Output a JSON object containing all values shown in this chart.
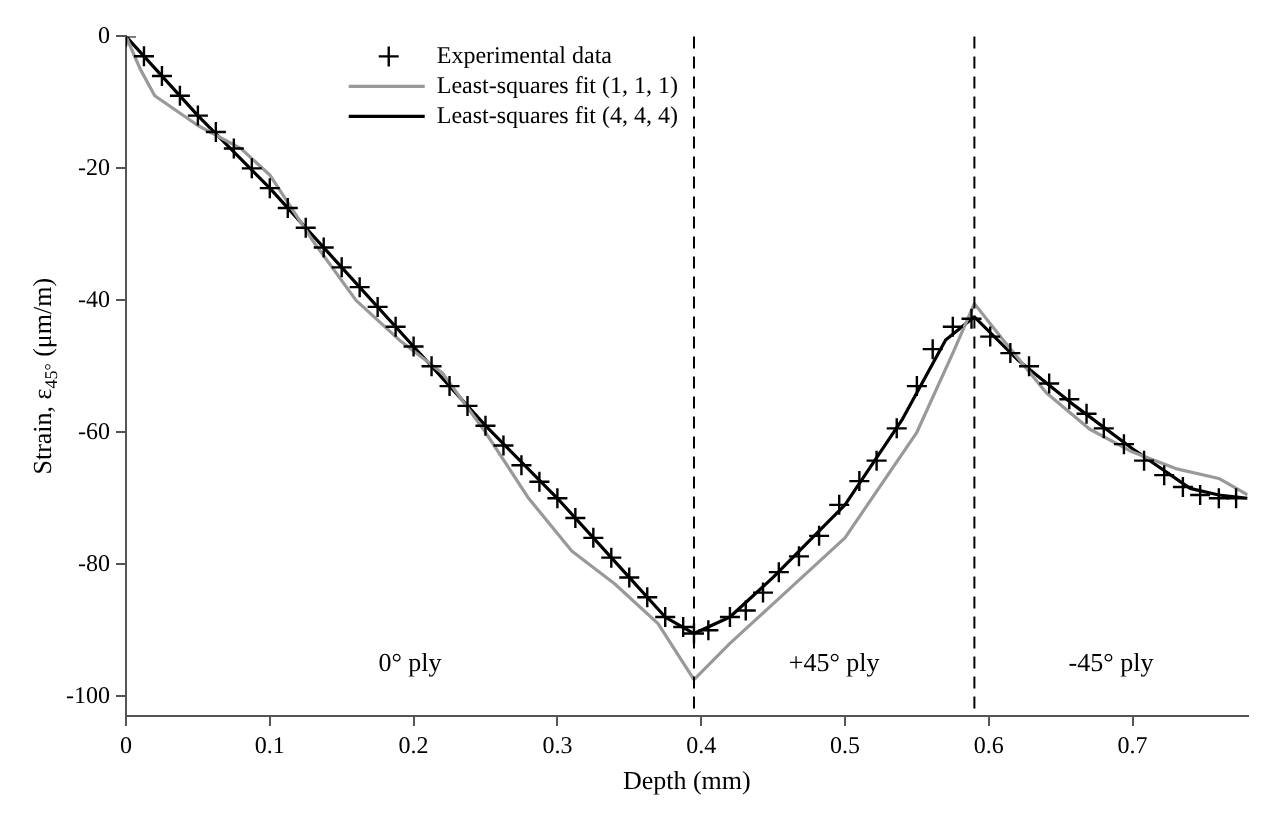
{
  "chart_data": {
    "type": "line",
    "xlabel": "Depth (mm)",
    "ylabel": "Strain, ε$_{45°}$ (μm/m)",
    "xlim": [
      0,
      0.78
    ],
    "xticks": [
      0,
      0.1,
      0.2,
      0.3,
      0.4,
      0.5,
      0.6,
      0.7
    ],
    "ylim": [
      -103,
      0
    ],
    "yticks": [
      0,
      -20,
      -40,
      -60,
      -80,
      -100
    ],
    "grid": false,
    "legend": "top",
    "series": [
      {
        "name": "Experimental data",
        "type": "scatter",
        "marker": "cross",
        "color": "#000000",
        "x": [
          0,
          0.0125,
          0.025,
          0.0375,
          0.05,
          0.0625,
          0.075,
          0.0875,
          0.1,
          0.1125,
          0.125,
          0.1375,
          0.15,
          0.1625,
          0.175,
          0.1875,
          0.2,
          0.2125,
          0.225,
          0.2375,
          0.25,
          0.2625,
          0.275,
          0.2875,
          0.3,
          0.3125,
          0.325,
          0.3375,
          0.35,
          0.3625,
          0.375,
          0.3875,
          0.395,
          0.405,
          0.42,
          0.431,
          0.443,
          0.454,
          0.468,
          0.482,
          0.496,
          0.51,
          0.522,
          0.536,
          0.55,
          0.561,
          0.575,
          0.588,
          0.601,
          0.615,
          0.628,
          0.642,
          0.656,
          0.668,
          0.68,
          0.694,
          0.708,
          0.722,
          0.735,
          0.747,
          0.76,
          0.772
        ],
        "values": [
          0,
          -3,
          -6,
          -9,
          -12,
          -14.5,
          -17,
          -20,
          -23,
          -26,
          -29,
          -32,
          -35,
          -38,
          -41,
          -44,
          -47,
          -50,
          -53,
          -56,
          -59,
          -62,
          -65,
          -67.5,
          -70,
          -73,
          -76,
          -79,
          -82,
          -85,
          -88,
          -89.5,
          -90.5,
          -90,
          -88,
          -87,
          -84.3,
          -81.2,
          -78.8,
          -75.7,
          -71,
          -67.4,
          -64.3,
          -59.4,
          -53,
          -47.4,
          -44,
          -42.8,
          -45.5,
          -48,
          -50,
          -52.6,
          -55,
          -57.2,
          -59.4,
          -61.8,
          -64.3,
          -66.5,
          -68.3,
          -69.5,
          -70,
          -70
        ]
      },
      {
        "name": "Least-squares fit (1, 1, 1)",
        "color": "#999999",
        "x": [
          0,
          0.01,
          0.02,
          0.05,
          0.08,
          0.1,
          0.13,
          0.16,
          0.19,
          0.22,
          0.25,
          0.28,
          0.31,
          0.34,
          0.37,
          0.395,
          0.42,
          0.45,
          0.5,
          0.55,
          0.575,
          0.59,
          0.61,
          0.64,
          0.67,
          0.7,
          0.73,
          0.76,
          0.78
        ],
        "values": [
          0,
          -5,
          -9,
          -13.5,
          -17,
          -21,
          -31,
          -40,
          -46,
          -51,
          -60,
          -70,
          -78,
          -83,
          -89,
          -97.5,
          -92,
          -86,
          -76,
          -60,
          -48,
          -40.5,
          -46,
          -54,
          -59.5,
          -63,
          -65.5,
          -67,
          -69.5
        ]
      },
      {
        "name": "Least-squares fit (4, 4, 4)",
        "color": "#000000",
        "x": [
          0,
          0.05,
          0.1,
          0.15,
          0.2,
          0.25,
          0.3,
          0.35,
          0.375,
          0.395,
          0.42,
          0.45,
          0.5,
          0.54,
          0.57,
          0.59,
          0.62,
          0.66,
          0.7,
          0.74,
          0.76,
          0.78
        ],
        "values": [
          0,
          -12,
          -23,
          -35,
          -47,
          -59,
          -70,
          -82,
          -88,
          -90.5,
          -88,
          -82,
          -71,
          -58,
          -46,
          -42.5,
          -49,
          -56,
          -62.5,
          -68.5,
          -69.5,
          -70
        ]
      }
    ],
    "ref_lines": [
      {
        "axis": "x",
        "value": 0.395,
        "line_style": "dashed",
        "color": "#000000"
      },
      {
        "axis": "x",
        "value": 0.59,
        "line_style": "dashed",
        "color": "#000000"
      }
    ],
    "annotations": [
      "0° ply",
      "+45° ply",
      "-45° ply"
    ]
  }
}
